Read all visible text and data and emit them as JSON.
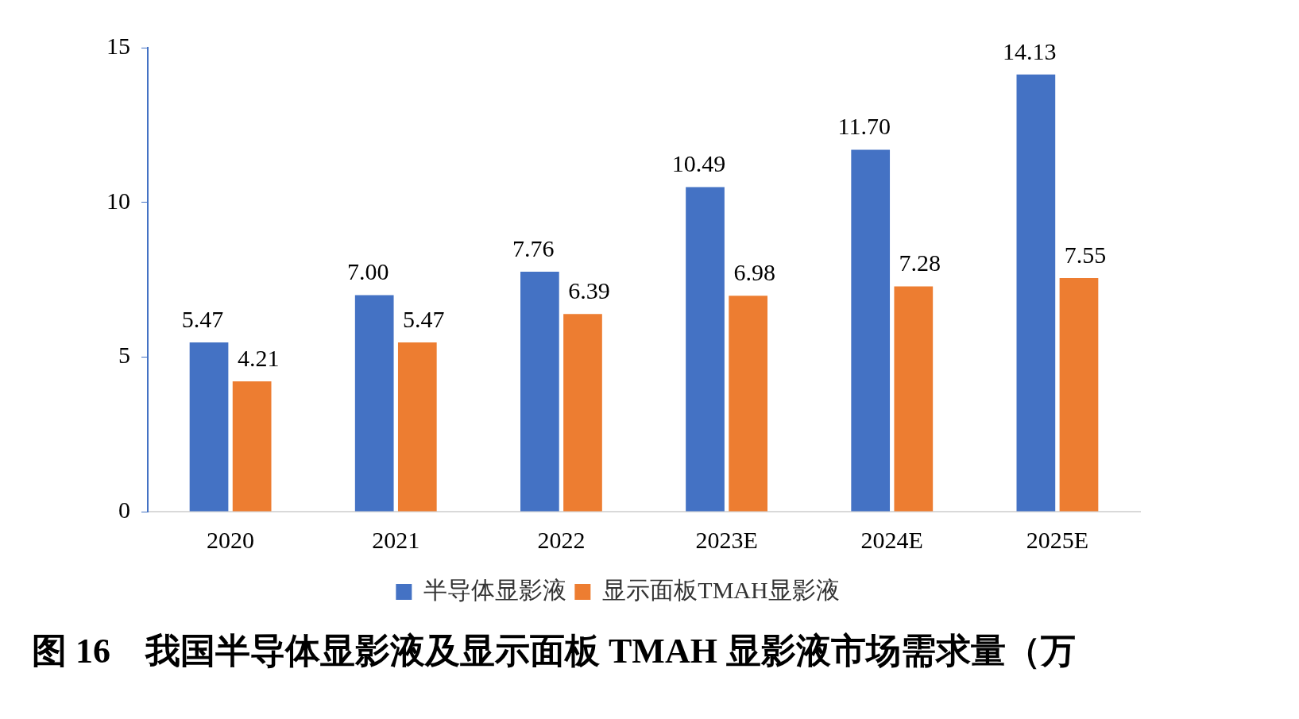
{
  "chart_data": {
    "type": "bar",
    "title": "图 16　我国半导体显影液及显示面板 TMAH 显影液市场需求量（万",
    "categories": [
      "2020",
      "2021",
      "2022",
      "2023E",
      "2024E",
      "2025E"
    ],
    "series": [
      {
        "name": "半导体显影液",
        "color": "#4472c4",
        "values": [
          5.47,
          7.0,
          7.76,
          10.49,
          11.7,
          14.13
        ]
      },
      {
        "name": "显示面板TMAH显影液",
        "color": "#ed7d31",
        "values": [
          4.21,
          5.47,
          6.39,
          6.98,
          7.28,
          7.55
        ]
      }
    ],
    "value_labels": [
      [
        "5.47",
        "7.00",
        "7.76",
        "10.49",
        "11.70",
        "14.13"
      ],
      [
        "4.21",
        "5.47",
        "6.39",
        "6.98",
        "7.28",
        "7.55"
      ]
    ],
    "ylim": [
      0,
      15
    ],
    "yticks": [
      0,
      5,
      10,
      15
    ],
    "grid": false,
    "legend": "bottom"
  }
}
